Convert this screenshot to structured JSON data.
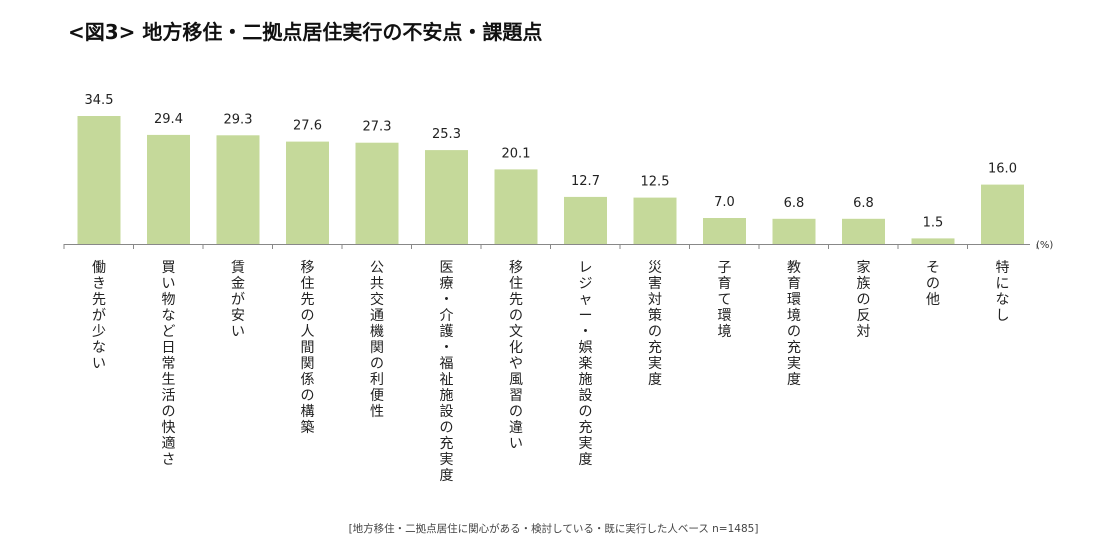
{
  "chart_data": {
    "type": "bar",
    "title": "<図3> 地方移住・二拠点居住実行の不安点・課題点",
    "unit": "(%)",
    "categories": [
      "働き先が少ない",
      "買い物など日常生活の快適さ",
      "賃金が安い",
      "移住先の人間関係の構築",
      "公共交通機関の利便性",
      "医療・介護・福祉施設の充実度",
      "移住先の文化や風習の違い",
      "レジャー・娯楽施設の充実度",
      "災害対策の充実度",
      "子育て環境",
      "教育環境の充実度",
      "家族の反対",
      "その他",
      "特になし"
    ],
    "values": [
      34.5,
      29.4,
      29.3,
      27.6,
      27.3,
      25.3,
      20.1,
      12.7,
      12.5,
      7.0,
      6.8,
      6.8,
      1.5,
      16.0
    ],
    "value_labels": [
      "34.5",
      "29.4",
      "29.3",
      "27.6",
      "27.3",
      "25.3",
      "20.1",
      "12.7",
      "12.5",
      "7.0",
      "6.8",
      "6.8",
      "1.5",
      "16.0"
    ],
    "ylim": [
      0,
      40
    ],
    "grid": false,
    "bar_color": "#c5d99a",
    "axis_color": "#888888",
    "footnote": "[地方移住・二拠点居住に関心がある・検討している・既に実行した人ベース n=1485]"
  }
}
